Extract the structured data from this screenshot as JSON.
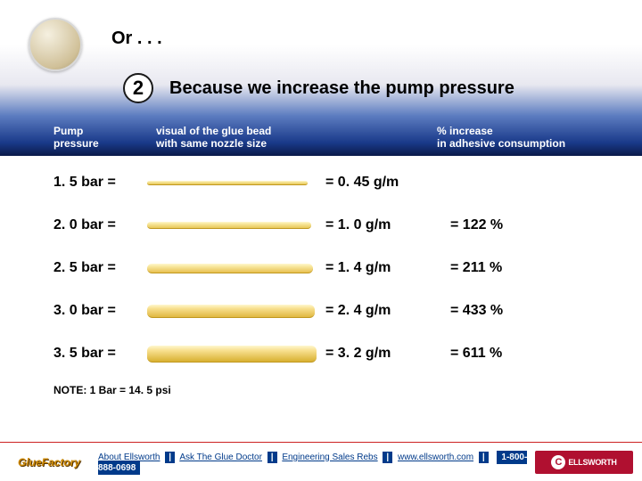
{
  "header": {
    "or_text": "Or . . .",
    "badge_number": "2",
    "title": "Because we increase the pump pressure",
    "col1_line1": "Pump",
    "col1_line2": "pressure",
    "col2_line1": "visual of the glue bead",
    "col2_line2": "with same nozzle size",
    "col3_line1": "% increase",
    "col3_line2": "in adhesive consumption"
  },
  "rows": [
    {
      "pressure": "1. 5 bar  =",
      "gm": "=  0. 45 g/m",
      "pct": "",
      "bead_height": 5,
      "bead_width": 180,
      "bead_color_top": "#f8e8a0",
      "bead_color_bot": "#e8c858"
    },
    {
      "pressure": "2. 0 bar  =",
      "gm": "=  1. 0 g/m",
      "pct": "=  122 %",
      "bead_height": 8,
      "bead_width": 184,
      "bead_color_top": "#f8e8a0",
      "bead_color_bot": "#e8c858"
    },
    {
      "pressure": "2. 5 bar  =",
      "gm": "=  1. 4 g/m",
      "pct": "=  211 %",
      "bead_height": 11,
      "bead_width": 186,
      "bead_color_top": "#f8e8a0",
      "bead_color_bot": "#e8c050"
    },
    {
      "pressure": "3. 0 bar  =",
      "gm": "=  2. 4 g/m",
      "pct": "=  433 %",
      "bead_height": 15,
      "bead_width": 188,
      "bead_color_top": "#f8e090",
      "bead_color_bot": "#e0b840"
    },
    {
      "pressure": "3. 5 bar =",
      "gm": "=  3. 2 g/m",
      "pct": "=  611 %",
      "bead_height": 19,
      "bead_width": 190,
      "bead_color_top": "#f8e090",
      "bead_color_bot": "#d8b030"
    }
  ],
  "note": "NOTE:  1 Bar = 14. 5 psi",
  "footer": {
    "logo_gf": "GlueFactory",
    "link1": "About Ellsworth",
    "link2": "Ask The Glue Doctor",
    "link3": "Engineering Sales Rebs",
    "link4": "www.ellsworth.com",
    "phone": "1-800-888-0698",
    "logo_ells": "ELLSWORTH"
  },
  "colors": {
    "footer_rule": "#cc2020",
    "link_blue": "#003a8a",
    "ells_red": "#b01030"
  }
}
